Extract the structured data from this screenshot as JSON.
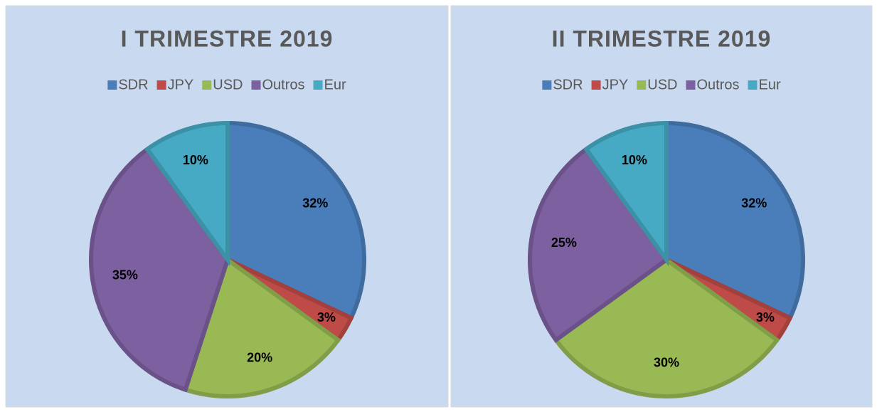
{
  "chart_data": [
    {
      "type": "pie",
      "title": "I TRIMESTRE 2019",
      "categories": [
        "SDR",
        "JPY",
        "USD",
        "Outros",
        "Eur"
      ],
      "values": [
        32,
        3,
        20,
        35,
        10
      ],
      "value_labels": [
        "32%",
        "3%",
        "20%",
        "35%",
        "10%"
      ],
      "colors": [
        "#4a7ebb",
        "#be4b48",
        "#98b954",
        "#7d60a0",
        "#46aac5"
      ],
      "legend": "top"
    },
    {
      "type": "pie",
      "title": "II TRIMESTRE 2019",
      "categories": [
        "SDR",
        "JPY",
        "USD",
        "Outros",
        "Eur"
      ],
      "values": [
        32,
        3,
        30,
        25,
        10
      ],
      "value_labels": [
        "32%",
        "3%",
        "30%",
        "25%",
        "10%"
      ],
      "colors": [
        "#4a7ebb",
        "#be4b48",
        "#98b954",
        "#7d60a0",
        "#46aac5"
      ],
      "legend": "top"
    }
  ]
}
